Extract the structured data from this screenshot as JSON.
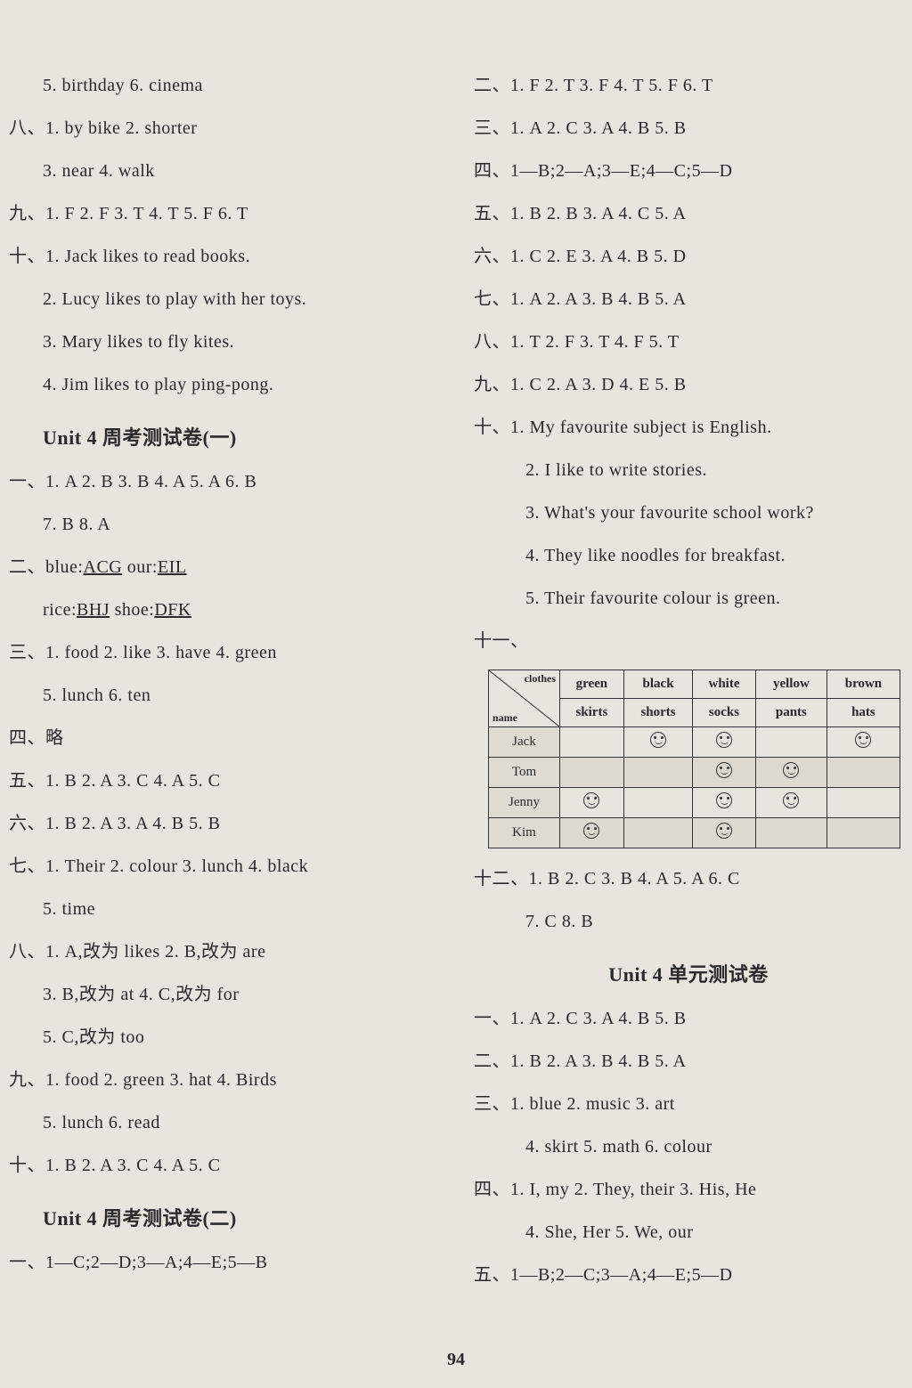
{
  "page_number": "94",
  "left": {
    "l1": "5. birthday   6. cinema",
    "l2": "八、1. by bike   2. shorter",
    "l3": "3. near   4. walk",
    "l4": "九、1. F   2. F   3. T   4. T   5. F   6. T",
    "l5": "十、1. Jack likes to read books.",
    "l6": "2. Lucy likes to play with her toys.",
    "l7": "3. Mary likes to fly kites.",
    "l8": "4. Jim likes to play ping-pong.",
    "title1": "Unit 4   周考测试卷(一)",
    "l9": "一、1. A   2. B   3. B   4. A   5. A   6. B",
    "l10": "7. B   8. A",
    "l11a": "二、blue:",
    "l11b": "ACG",
    "l11c": "   our:",
    "l11d": "EIL",
    "l12a": "rice:",
    "l12b": "BHJ",
    "l12c": "   shoe:",
    "l12d": "DFK",
    "l13": "三、1. food   2. like   3. have   4. green",
    "l14": "5. lunch   6. ten",
    "l15": "四、略",
    "l16": "五、1. B   2. A   3. C   4. A   5. C",
    "l17": "六、1. B   2. A   3. A   4. B   5. B",
    "l18": "七、1. Their   2. colour   3. lunch   4. black",
    "l19": "5. time",
    "l20": "八、1. A,改为 likes   2. B,改为 are",
    "l21": "3. B,改为 at   4. C,改为 for",
    "l22": "5. C,改为 too",
    "l23": "九、1. food   2. green   3. hat   4. Birds",
    "l24": "5. lunch   6. read",
    "l25": "十、1. B   2. A   3. C   4. A   5. C",
    "title2": "Unit 4   周考测试卷(二)",
    "l26": "一、1—C;2—D;3—A;4—E;5—B"
  },
  "right": {
    "r1": "二、1. F   2. T   3. F   4. T   5. F   6. T",
    "r2": "三、1. A   2. C   3. A   4. B   5. B",
    "r3": "四、1—B;2—A;3—E;4—C;5—D",
    "r4": "五、1. B   2. B   3. A   4. C   5. A",
    "r5": "六、1. C   2. E   3. A   4. B   5. D",
    "r6": "七、1. A   2. A   3. B   4. B   5. A",
    "r7": "八、1. T   2. F   3. T   4. F   5. T",
    "r8": "九、1. C   2. A   3. D   4. E   5. B",
    "r9": "十、1. My favourite subject is English.",
    "r10": "2. I like to write stories.",
    "r11": "3. What's your favourite school work?",
    "r12": "4. They like noodles for breakfast.",
    "r13": "5. Their favourite colour is green.",
    "r14": "十一、",
    "table": {
      "diag_top": "clothes",
      "diag_bottom": "name",
      "cols": [
        "green",
        "black",
        "white",
        "yellow",
        "brown"
      ],
      "col2": [
        "skirts",
        "shorts",
        "socks",
        "pants",
        "hats"
      ],
      "rows": [
        {
          "name": "Jack",
          "cells": [
            false,
            true,
            true,
            false,
            true
          ]
        },
        {
          "name": "Tom",
          "cells": [
            false,
            false,
            true,
            true,
            false
          ]
        },
        {
          "name": "Jenny",
          "cells": [
            true,
            false,
            true,
            true,
            false
          ]
        },
        {
          "name": "Kim",
          "cells": [
            true,
            false,
            true,
            false,
            false
          ]
        }
      ]
    },
    "r15": "十二、1. B   2. C   3. B   4. A   5. A   6. C",
    "r16": "7. C   8. B",
    "title3": "Unit 4   单元测试卷",
    "r17": "一、1. A   2. C   3. A   4. B   5. B",
    "r18": "二、1. B   2. A   3. B   4. B   5. A",
    "r19": "三、1. blue   2. music   3. art",
    "r20": "4. skirt   5. math   6. colour",
    "r21": "四、1. I, my   2. They, their   3. His, He",
    "r22": "4. She, Her   5. We, our",
    "r23": "五、1—B;2—C;3—A;4—E;5—D"
  }
}
